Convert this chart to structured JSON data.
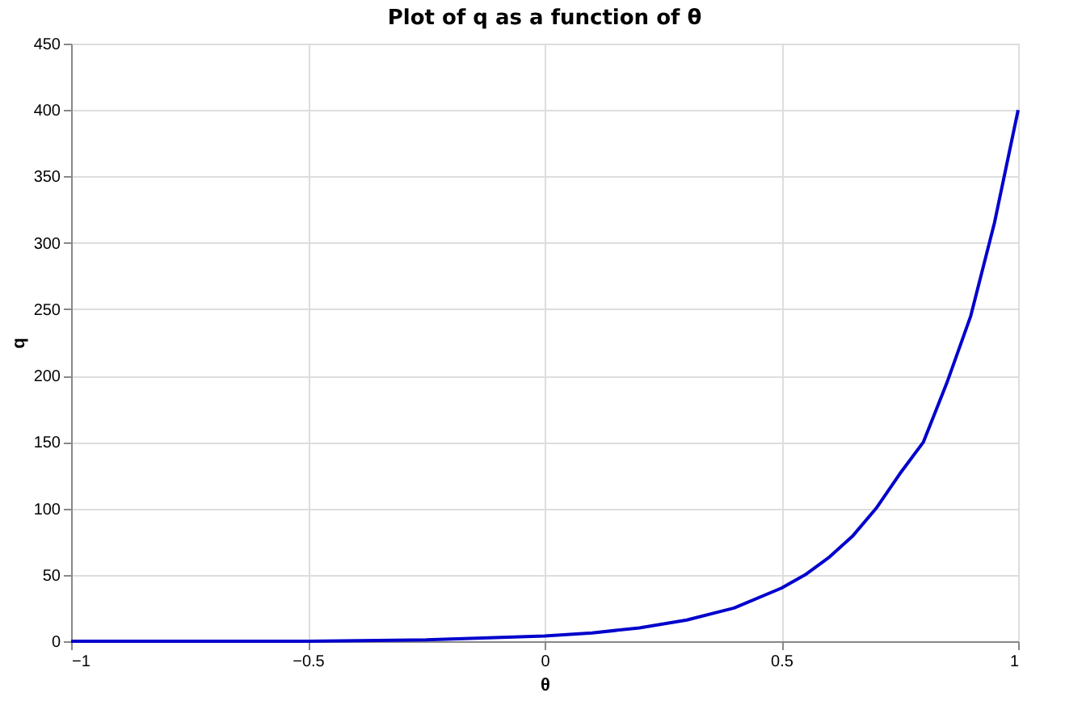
{
  "chart_data": {
    "type": "line",
    "title": "Plot of q as a function of θ",
    "xlabel": "θ",
    "ylabel": "q",
    "series": [
      {
        "color": "#0000cc",
        "x": [
          -1,
          -0.75,
          -0.5,
          -0.25,
          0,
          0.1,
          0.2,
          0.3,
          0.4,
          0.5,
          0.55,
          0.6,
          0.65,
          0.7,
          0.75,
          0.8,
          0.85,
          0.9,
          0.95,
          1
        ],
        "values": [
          0,
          0,
          0,
          1,
          4,
          6.3,
          10,
          16,
          25,
          40,
          50,
          63,
          79,
          100,
          126,
          150,
          195,
          245,
          315,
          400
        ]
      }
    ],
    "xlim": [
      -1,
      1
    ],
    "xticks": [
      -1,
      -0.5,
      0,
      0.5,
      1
    ],
    "ylim": [
      0,
      450
    ],
    "yticks": [
      0,
      50,
      100,
      150,
      200,
      250,
      300,
      350,
      400,
      450
    ],
    "grid": true,
    "marker": "none",
    "line_style": "solid"
  }
}
